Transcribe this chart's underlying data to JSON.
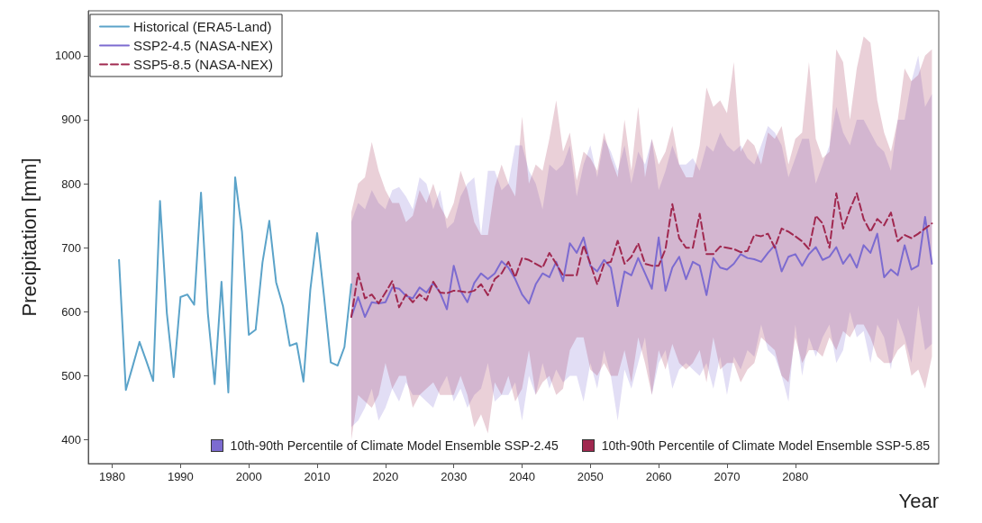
{
  "chart_data": {
    "type": "line",
    "xlabel": "Year",
    "ylabel": "Precipitation [mm]",
    "xlim": [
      1976.5,
      2101
    ],
    "ylim": [
      363,
      1070
    ],
    "xticks": [
      1980,
      1990,
      2000,
      2010,
      2020,
      2030,
      2040,
      2050,
      2060,
      2070,
      2080
    ],
    "yticks": [
      400,
      500,
      600,
      700,
      800,
      900,
      1000
    ],
    "grid": false,
    "legend": "top left",
    "marker": "none",
    "series": [
      {
        "name": "Historical (ERA5-Land)",
        "color": "#5ba3c9",
        "line_style": "solid",
        "x": [
          1981,
          1982,
          1983,
          1984,
          1985,
          1986,
          1987,
          1988,
          1989,
          1990,
          1991,
          1992,
          1993,
          1994,
          1995,
          1996,
          1997,
          1998,
          1999,
          2000,
          2001,
          2002,
          2003,
          2004,
          2005,
          2006,
          2007,
          2008,
          2009,
          2010,
          2011,
          2012,
          2013,
          2014,
          2015
        ],
        "values": [
          681,
          478,
          515,
          553,
          523,
          492,
          773,
          598,
          498,
          623,
          627,
          611,
          786,
          598,
          487,
          647,
          474,
          810,
          725,
          564,
          572,
          677,
          742,
          646,
          609,
          547,
          551,
          491,
          634,
          723,
          625,
          521,
          516,
          545,
          643
        ]
      },
      {
        "name": "SSP2-4.5 (NASA-NEX)",
        "color": "#7c6bd0",
        "line_style": "solid",
        "x": [
          2015,
          2016,
          2017,
          2018,
          2019,
          2020,
          2021,
          2022,
          2023,
          2024,
          2025,
          2026,
          2027,
          2028,
          2029,
          2030,
          2031,
          2032,
          2033,
          2034,
          2035,
          2036,
          2037,
          2038,
          2039,
          2040,
          2041,
          2042,
          2043,
          2044,
          2045,
          2046,
          2047,
          2048,
          2049,
          2050,
          2051,
          2052,
          2053,
          2054,
          2055,
          2056,
          2057,
          2058,
          2059,
          2060,
          2061,
          2062,
          2063,
          2064,
          2065,
          2066,
          2067,
          2068,
          2069,
          2070,
          2071,
          2072,
          2073,
          2074,
          2075,
          2076,
          2077,
          2078,
          2079,
          2080,
          2081,
          2082,
          2083,
          2084,
          2085,
          2086,
          2087,
          2088,
          2089,
          2090,
          2091,
          2092,
          2093,
          2094,
          2095,
          2096,
          2097,
          2098,
          2099,
          2100
        ],
        "values": [
          592,
          623,
          592,
          615,
          613,
          615,
          638,
          636,
          625,
          621,
          638,
          630,
          645,
          630,
          604,
          672,
          633,
          615,
          645,
          660,
          651,
          660,
          679,
          669,
          651,
          627,
          613,
          643,
          660,
          654,
          678,
          648,
          707,
          692,
          716,
          672,
          663,
          681,
          669,
          609,
          663,
          657,
          684,
          660,
          636,
          716,
          633,
          669,
          686,
          651,
          678,
          672,
          626,
          684,
          669,
          666,
          675,
          690,
          684,
          682,
          678,
          692,
          704,
          663,
          686,
          690,
          672,
          690,
          701,
          681,
          686,
          701,
          675,
          690,
          669,
          704,
          692,
          722,
          654,
          666,
          657,
          704,
          666,
          672,
          748,
          675
        ],
        "lower": [
          420,
          430,
          450,
          480,
          430,
          450,
          480,
          460,
          490,
          470,
          470,
          460,
          450,
          480,
          500,
          460,
          480,
          450,
          470,
          480,
          520,
          460,
          470,
          470,
          490,
          430,
          500,
          470,
          520,
          480,
          510,
          490,
          500,
          500,
          460,
          520,
          480,
          540,
          500,
          430,
          510,
          480,
          520,
          560,
          470,
          520,
          540,
          480,
          510,
          520,
          510,
          500,
          520,
          480,
          530,
          470,
          530,
          510,
          540,
          530,
          580,
          540,
          530,
          500,
          460,
          580,
          500,
          560,
          530,
          560,
          580,
          520,
          540,
          600,
          560,
          570,
          520,
          580,
          560,
          510,
          590,
          560,
          520,
          610,
          540,
          550
        ],
        "upper": [
          740,
          770,
          760,
          790,
          770,
          760,
          790,
          795,
          780,
          760,
          810,
          800,
          760,
          790,
          730,
          740,
          780,
          800,
          810,
          720,
          820,
          820,
          790,
          800,
          860,
          860,
          820,
          800,
          760,
          830,
          820,
          830,
          860,
          780,
          830,
          860,
          810,
          870,
          850,
          820,
          860,
          800,
          850,
          830,
          870,
          790,
          820,
          860,
          830,
          830,
          840,
          820,
          860,
          850,
          880,
          860,
          850,
          860,
          840,
          830,
          860,
          890,
          880,
          860,
          810,
          840,
          870,
          870,
          800,
          830,
          860,
          920,
          880,
          860,
          900,
          900,
          880,
          860,
          850,
          820,
          900,
          900,
          960,
          1000,
          920,
          940
        ]
      },
      {
        "name": "SSP5-8.5 (NASA-NEX)",
        "color": "#a0284f",
        "line_style": "dashed",
        "x": [
          2015,
          2016,
          2017,
          2018,
          2019,
          2020,
          2021,
          2022,
          2023,
          2024,
          2025,
          2026,
          2027,
          2028,
          2029,
          2030,
          2031,
          2032,
          2033,
          2034,
          2035,
          2036,
          2037,
          2038,
          2039,
          2040,
          2041,
          2042,
          2043,
          2044,
          2045,
          2046,
          2047,
          2048,
          2049,
          2050,
          2051,
          2052,
          2053,
          2054,
          2055,
          2056,
          2057,
          2058,
          2059,
          2060,
          2061,
          2062,
          2063,
          2064,
          2065,
          2066,
          2067,
          2068,
          2069,
          2070,
          2071,
          2072,
          2073,
          2074,
          2075,
          2076,
          2077,
          2078,
          2079,
          2080,
          2081,
          2082,
          2083,
          2084,
          2085,
          2086,
          2087,
          2088,
          2089,
          2090,
          2091,
          2092,
          2093,
          2094,
          2095,
          2096,
          2097,
          2098,
          2099,
          2100
        ],
        "values": [
          592,
          660,
          621,
          627,
          613,
          630,
          648,
          607,
          627,
          615,
          627,
          618,
          647,
          630,
          629,
          633,
          632,
          630,
          633,
          643,
          626,
          651,
          660,
          678,
          654,
          684,
          681,
          675,
          669,
          692,
          675,
          657,
          657,
          657,
          704,
          675,
          643,
          675,
          678,
          711,
          675,
          686,
          707,
          675,
          672,
          672,
          698,
          768,
          715,
          700,
          700,
          753,
          690,
          690,
          702,
          700,
          698,
          693,
          695,
          720,
          718,
          722,
          700,
          730,
          725,
          718,
          710,
          698,
          750,
          738,
          700,
          785,
          730,
          760,
          785,
          745,
          725,
          745,
          735,
          755,
          710,
          720,
          715,
          722,
          730,
          738
        ],
        "lower": [
          400,
          470,
          460,
          450,
          470,
          520,
          480,
          500,
          500,
          450,
          470,
          480,
          490,
          470,
          470,
          470,
          500,
          470,
          420,
          440,
          410,
          490,
          470,
          500,
          460,
          480,
          540,
          470,
          490,
          500,
          470,
          480,
          540,
          560,
          560,
          510,
          500,
          520,
          500,
          500,
          540,
          490,
          560,
          520,
          470,
          540,
          510,
          550,
          520,
          510,
          520,
          540,
          490,
          560,
          510,
          520,
          520,
          490,
          510,
          520,
          560,
          550,
          540,
          500,
          490,
          560,
          520,
          540,
          540,
          530,
          560,
          540,
          570,
          560,
          580,
          580,
          560,
          530,
          520,
          520,
          540,
          550,
          500,
          510,
          480,
          530
        ],
        "upper": [
          755,
          800,
          810,
          865,
          820,
          790,
          770,
          770,
          740,
          750,
          790,
          770,
          800,
          765,
          745,
          770,
          820,
          790,
          740,
          720,
          720,
          795,
          830,
          800,
          780,
          905,
          800,
          830,
          820,
          870,
          930,
          850,
          880,
          805,
          850,
          840,
          820,
          880,
          840,
          810,
          900,
          820,
          920,
          810,
          870,
          830,
          850,
          890,
          830,
          810,
          810,
          860,
          950,
          920,
          930,
          910,
          990,
          850,
          870,
          860,
          830,
          880,
          870,
          890,
          830,
          870,
          880,
          990,
          870,
          840,
          850,
          1010,
          990,
          900,
          980,
          1030,
          1020,
          930,
          880,
          850,
          900,
          980,
          960,
          970,
          1000,
          1010
        ]
      }
    ],
    "annotations": [
      "10th-90th Percentile of Climate Model Ensemble SSP-2.45",
      "10th-90th Percentile of Climate Model Ensemble SSP-5.85"
    ]
  }
}
